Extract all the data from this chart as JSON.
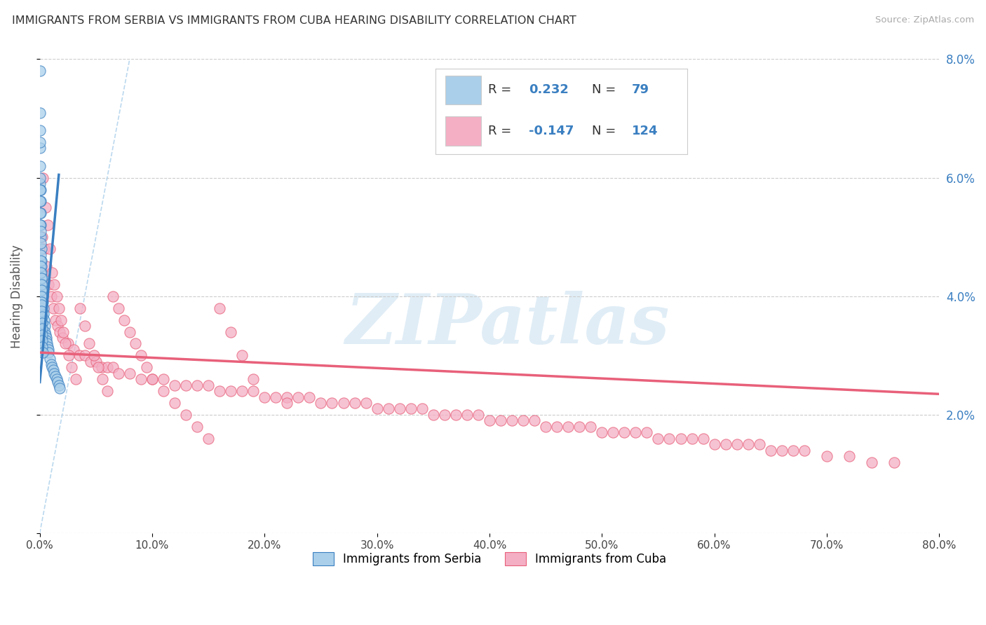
{
  "title": "IMMIGRANTS FROM SERBIA VS IMMIGRANTS FROM CUBA HEARING DISABILITY CORRELATION CHART",
  "source": "Source: ZipAtlas.com",
  "ylabel": "Hearing Disability",
  "legend_labels": [
    "Immigrants from Serbia",
    "Immigrants from Cuba"
  ],
  "r_serbia": 0.232,
  "n_serbia": 79,
  "r_cuba": -0.147,
  "n_cuba": 124,
  "color_serbia": "#aacfea",
  "color_cuba": "#f4afc5",
  "trendline_color_serbia": "#3a7fc1",
  "trendline_color_cuba": "#e8607a",
  "dash_color": "#aacfea",
  "xlim": [
    0.0,
    0.8
  ],
  "ylim": [
    0.0,
    0.08
  ],
  "xticks": [
    0.0,
    0.1,
    0.2,
    0.3,
    0.4,
    0.5,
    0.6,
    0.7,
    0.8
  ],
  "yticks": [
    0.0,
    0.02,
    0.04,
    0.06,
    0.08
  ],
  "xtick_labels": [
    "0.0%",
    "10.0%",
    "20.0%",
    "30.0%",
    "40.0%",
    "50.0%",
    "60.0%",
    "70.0%",
    "80.0%"
  ],
  "ytick_labels_right": [
    "",
    "2.0%",
    "4.0%",
    "6.0%",
    "8.0%"
  ],
  "watermark_text": "ZIPatlas",
  "legend_text_color": "#3a7fc1",
  "serbia_x": [
    0.0002,
    0.0003,
    0.0004,
    0.0005,
    0.0006,
    0.0007,
    0.0008,
    0.0009,
    0.001,
    0.0012,
    0.0014,
    0.0016,
    0.0018,
    0.002,
    0.0022,
    0.0025,
    0.0028,
    0.003,
    0.0033,
    0.0036,
    0.004,
    0.0044,
    0.0048,
    0.0052,
    0.0056,
    0.006,
    0.0065,
    0.007,
    0.0075,
    0.008,
    0.009,
    0.01,
    0.011,
    0.012,
    0.013,
    0.014,
    0.015,
    0.016,
    0.017,
    0.018,
    0.0001,
    0.0001,
    0.0001,
    0.0002,
    0.0002,
    0.0002,
    0.0003,
    0.0003,
    0.0003,
    0.0004,
    0.0004,
    0.0005,
    0.0005,
    0.0006,
    0.0006,
    0.0007,
    0.0007,
    0.0008,
    0.0008,
    0.0009,
    0.0009,
    0.001,
    0.001,
    0.0011,
    0.0011,
    0.0012,
    0.0013,
    0.0014,
    0.0015,
    0.0016,
    0.0017,
    0.0018,
    0.0019,
    0.002,
    0.0021,
    0.0022,
    0.0023,
    0.0024,
    0.0025
  ],
  "serbia_y": [
    0.078,
    0.065,
    0.062,
    0.059,
    0.058,
    0.056,
    0.054,
    0.052,
    0.05,
    0.048,
    0.046,
    0.045,
    0.044,
    0.043,
    0.042,
    0.041,
    0.04,
    0.039,
    0.038,
    0.037,
    0.036,
    0.035,
    0.034,
    0.0335,
    0.033,
    0.0325,
    0.032,
    0.0315,
    0.031,
    0.0305,
    0.0295,
    0.0285,
    0.028,
    0.0275,
    0.027,
    0.0265,
    0.026,
    0.0255,
    0.025,
    0.0245,
    0.066,
    0.052,
    0.031,
    0.071,
    0.06,
    0.035,
    0.068,
    0.058,
    0.033,
    0.056,
    0.031,
    0.054,
    0.032,
    0.051,
    0.033,
    0.049,
    0.034,
    0.047,
    0.035,
    0.046,
    0.036,
    0.045,
    0.037,
    0.044,
    0.038,
    0.043,
    0.042,
    0.041,
    0.04,
    0.039,
    0.0385,
    0.0375,
    0.0365,
    0.0355,
    0.0345,
    0.0335,
    0.0325,
    0.0315,
    0.0305
  ],
  "cuba_x": [
    0.002,
    0.004,
    0.006,
    0.008,
    0.01,
    0.012,
    0.014,
    0.016,
    0.018,
    0.02,
    0.025,
    0.03,
    0.035,
    0.04,
    0.045,
    0.05,
    0.055,
    0.06,
    0.065,
    0.07,
    0.08,
    0.09,
    0.1,
    0.11,
    0.12,
    0.13,
    0.14,
    0.15,
    0.16,
    0.17,
    0.18,
    0.19,
    0.2,
    0.21,
    0.22,
    0.23,
    0.24,
    0.25,
    0.26,
    0.27,
    0.28,
    0.29,
    0.3,
    0.31,
    0.32,
    0.33,
    0.34,
    0.35,
    0.36,
    0.37,
    0.38,
    0.39,
    0.4,
    0.41,
    0.42,
    0.43,
    0.44,
    0.45,
    0.46,
    0.47,
    0.48,
    0.49,
    0.5,
    0.51,
    0.52,
    0.53,
    0.54,
    0.55,
    0.56,
    0.57,
    0.58,
    0.59,
    0.6,
    0.61,
    0.62,
    0.63,
    0.64,
    0.65,
    0.66,
    0.67,
    0.68,
    0.7,
    0.72,
    0.74,
    0.76,
    0.003,
    0.005,
    0.007,
    0.009,
    0.011,
    0.013,
    0.015,
    0.017,
    0.019,
    0.021,
    0.023,
    0.026,
    0.028,
    0.032,
    0.036,
    0.04,
    0.044,
    0.048,
    0.052,
    0.056,
    0.06,
    0.065,
    0.07,
    0.075,
    0.08,
    0.085,
    0.09,
    0.095,
    0.1,
    0.11,
    0.12,
    0.13,
    0.14,
    0.15,
    0.16,
    0.17,
    0.18,
    0.19,
    0.22
  ],
  "cuba_y": [
    0.05,
    0.048,
    0.045,
    0.042,
    0.04,
    0.038,
    0.036,
    0.035,
    0.034,
    0.033,
    0.032,
    0.031,
    0.03,
    0.03,
    0.029,
    0.029,
    0.028,
    0.028,
    0.028,
    0.027,
    0.027,
    0.026,
    0.026,
    0.026,
    0.025,
    0.025,
    0.025,
    0.025,
    0.024,
    0.024,
    0.024,
    0.024,
    0.023,
    0.023,
    0.023,
    0.023,
    0.023,
    0.022,
    0.022,
    0.022,
    0.022,
    0.022,
    0.021,
    0.021,
    0.021,
    0.021,
    0.021,
    0.02,
    0.02,
    0.02,
    0.02,
    0.02,
    0.019,
    0.019,
    0.019,
    0.019,
    0.019,
    0.018,
    0.018,
    0.018,
    0.018,
    0.018,
    0.017,
    0.017,
    0.017,
    0.017,
    0.017,
    0.016,
    0.016,
    0.016,
    0.016,
    0.016,
    0.015,
    0.015,
    0.015,
    0.015,
    0.015,
    0.014,
    0.014,
    0.014,
    0.014,
    0.013,
    0.013,
    0.012,
    0.012,
    0.06,
    0.055,
    0.052,
    0.048,
    0.044,
    0.042,
    0.04,
    0.038,
    0.036,
    0.034,
    0.032,
    0.03,
    0.028,
    0.026,
    0.038,
    0.035,
    0.032,
    0.03,
    0.028,
    0.026,
    0.024,
    0.04,
    0.038,
    0.036,
    0.034,
    0.032,
    0.03,
    0.028,
    0.026,
    0.024,
    0.022,
    0.02,
    0.018,
    0.016,
    0.038,
    0.034,
    0.03,
    0.026,
    0.022
  ],
  "serbia_trend_x": [
    0.0001,
    0.017
  ],
  "serbia_trend_y": [
    0.0255,
    0.0605
  ],
  "cuba_trend_x": [
    0.0,
    0.8
  ],
  "cuba_trend_y": [
    0.0305,
    0.0235
  ]
}
